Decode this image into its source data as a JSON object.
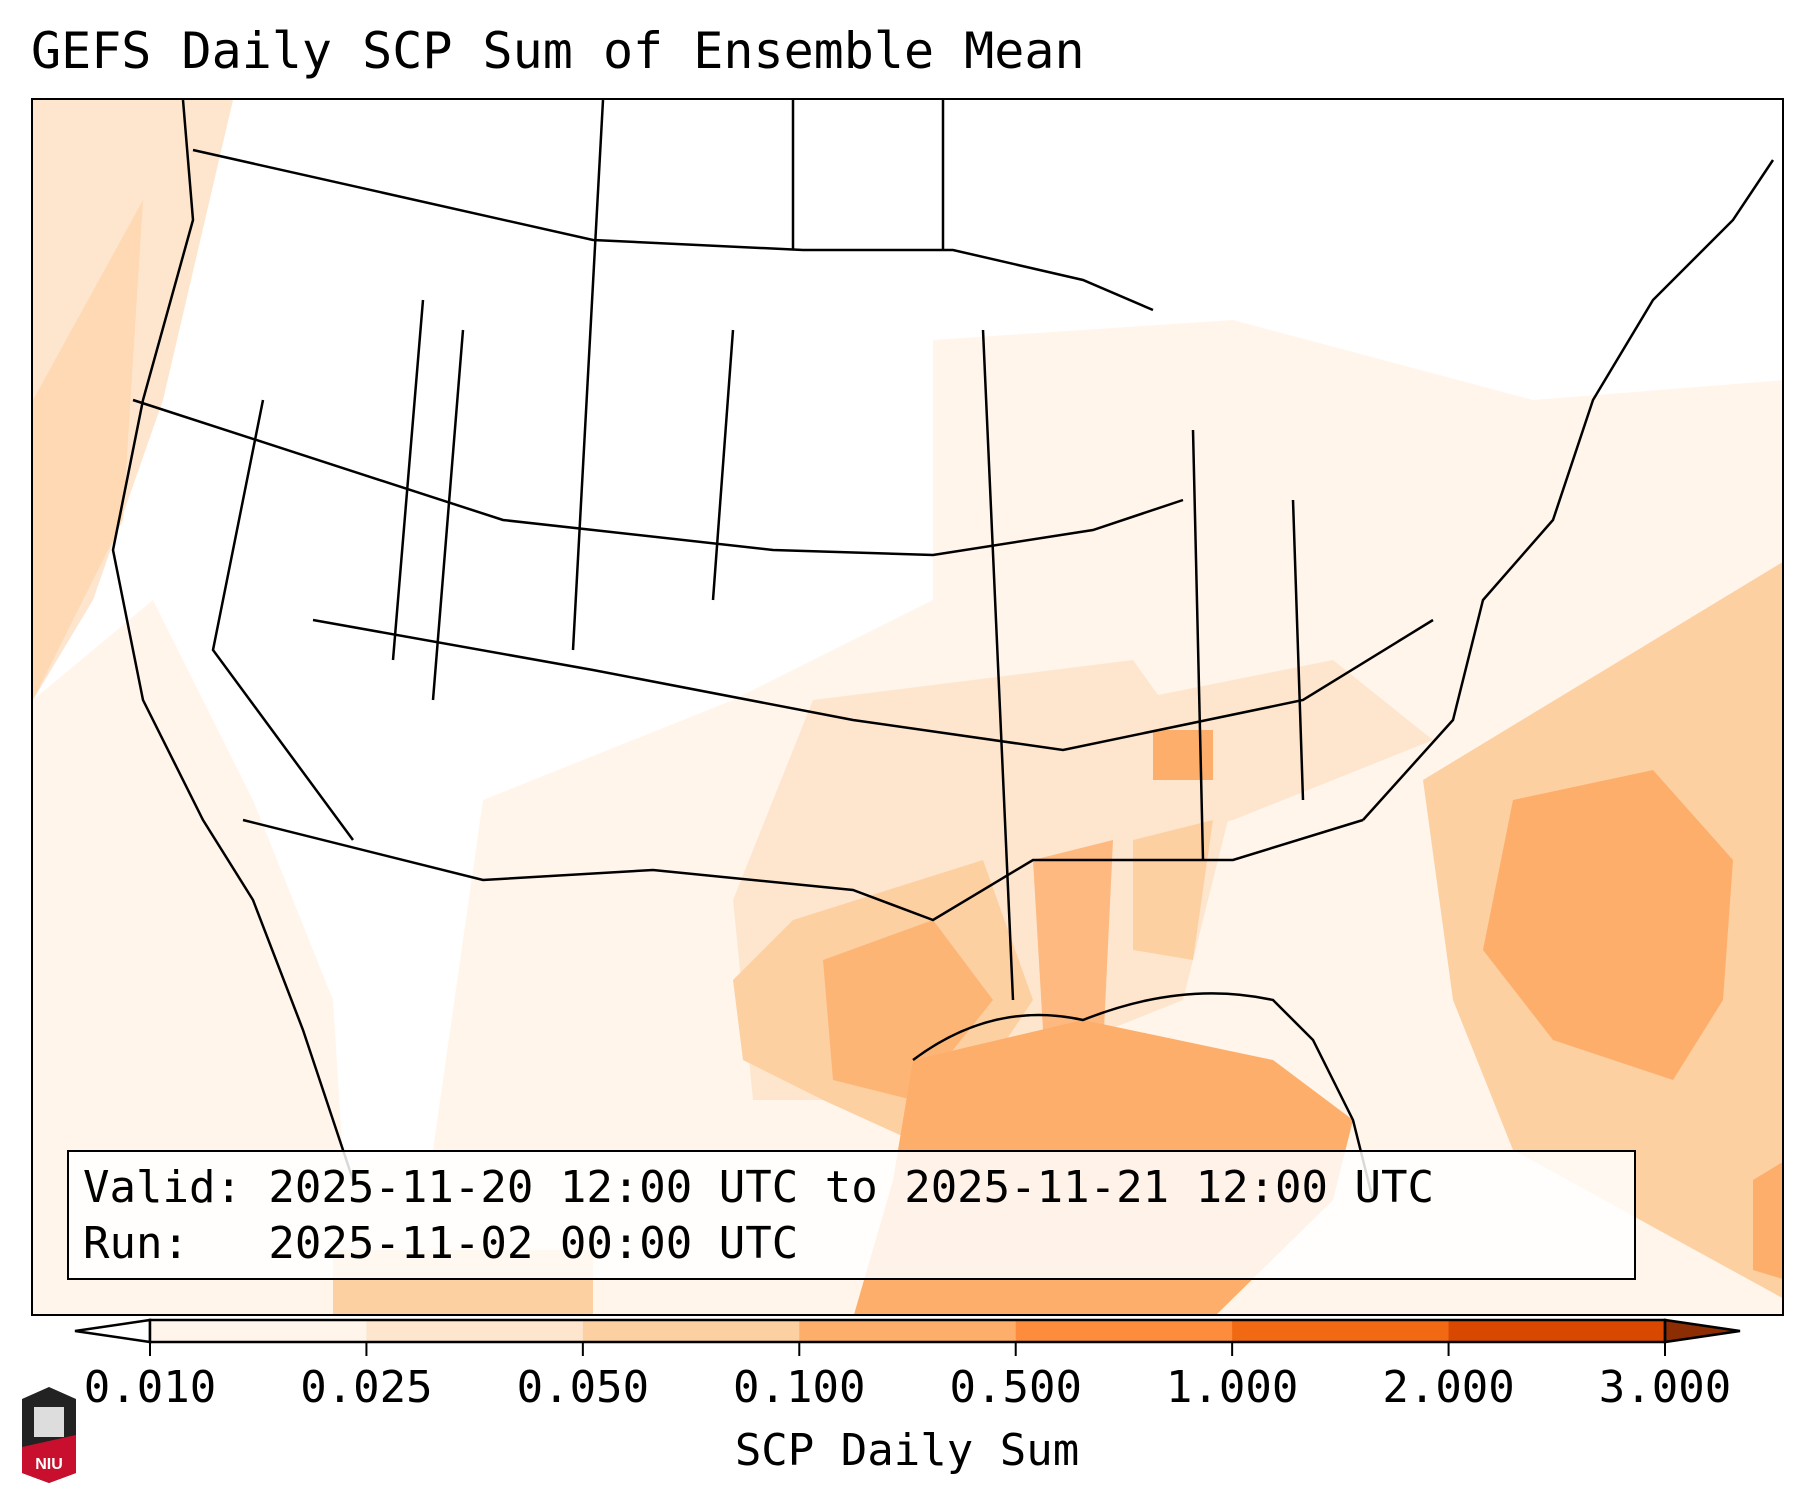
{
  "title": "GEFS Daily SCP Sum of Ensemble Mean",
  "info": {
    "valid_line": "Valid: 2025-11-20 12:00 UTC to 2025-11-21 12:00 UTC",
    "run_line": "Run:   2025-11-02 00:00 UTC"
  },
  "colorbar": {
    "label": "SCP Daily Sum",
    "ticks": [
      "0.010",
      "0.025",
      "0.050",
      "0.100",
      "0.500",
      "1.000",
      "2.000",
      "3.000"
    ],
    "colors": [
      "#fff5eb",
      "#fee6ce",
      "#fdd0a2",
      "#fdae6b",
      "#fd8d3c",
      "#f16913",
      "#d94801"
    ],
    "under_color": "#ffffff",
    "over_color": "#8c2d04"
  },
  "logo": {
    "text": "NIU"
  }
}
